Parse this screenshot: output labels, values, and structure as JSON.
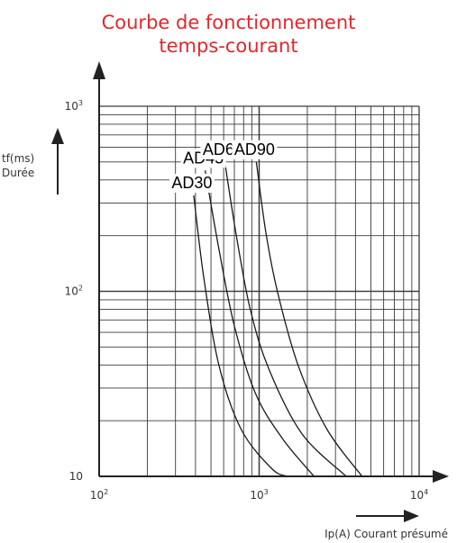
{
  "chart_data": {
    "type": "line",
    "title_lines": [
      "Courbe de fonctionnement",
      "temps-courant"
    ],
    "ylabel_lines": [
      "tf(ms)",
      "Durée"
    ],
    "xlabel": "Ip(A) Courant présumé",
    "x_scale": "log",
    "y_scale": "log",
    "xlim": [
      100,
      10000
    ],
    "ylim": [
      10,
      1000
    ],
    "x_ticks": [
      {
        "value": 100,
        "base": "10",
        "exp": "2"
      },
      {
        "value": 1000,
        "base": "10",
        "exp": "3"
      },
      {
        "value": 10000,
        "base": "10",
        "exp": "4"
      }
    ],
    "y_ticks": [
      {
        "value": 1000,
        "base": "10",
        "exp": "3"
      },
      {
        "value": 100,
        "base": "10",
        "exp": "2"
      },
      {
        "value": 10,
        "base": "10",
        "exp": ""
      }
    ],
    "grid": true,
    "series": [
      {
        "name": "AD30",
        "points": [
          [
            390,
            330
          ],
          [
            450,
            120
          ],
          [
            560,
            40
          ],
          [
            770,
            18
          ],
          [
            1200,
            11
          ],
          [
            1500,
            10
          ]
        ]
      },
      {
        "name": "AD45",
        "points": [
          [
            460,
            450
          ],
          [
            560,
            170
          ],
          [
            700,
            65
          ],
          [
            950,
            28
          ],
          [
            1400,
            16
          ],
          [
            2200,
            10
          ]
        ]
      },
      {
        "name": "AD60",
        "points": [
          [
            610,
            500
          ],
          [
            720,
            200
          ],
          [
            880,
            80
          ],
          [
            1150,
            38
          ],
          [
            1850,
            17
          ],
          [
            3500,
            10
          ]
        ]
      },
      {
        "name": "AD90",
        "points": [
          [
            960,
            500
          ],
          [
            1100,
            210
          ],
          [
            1300,
            100
          ],
          [
            1750,
            40
          ],
          [
            2650,
            18
          ],
          [
            4400,
            10
          ]
        ]
      }
    ]
  }
}
